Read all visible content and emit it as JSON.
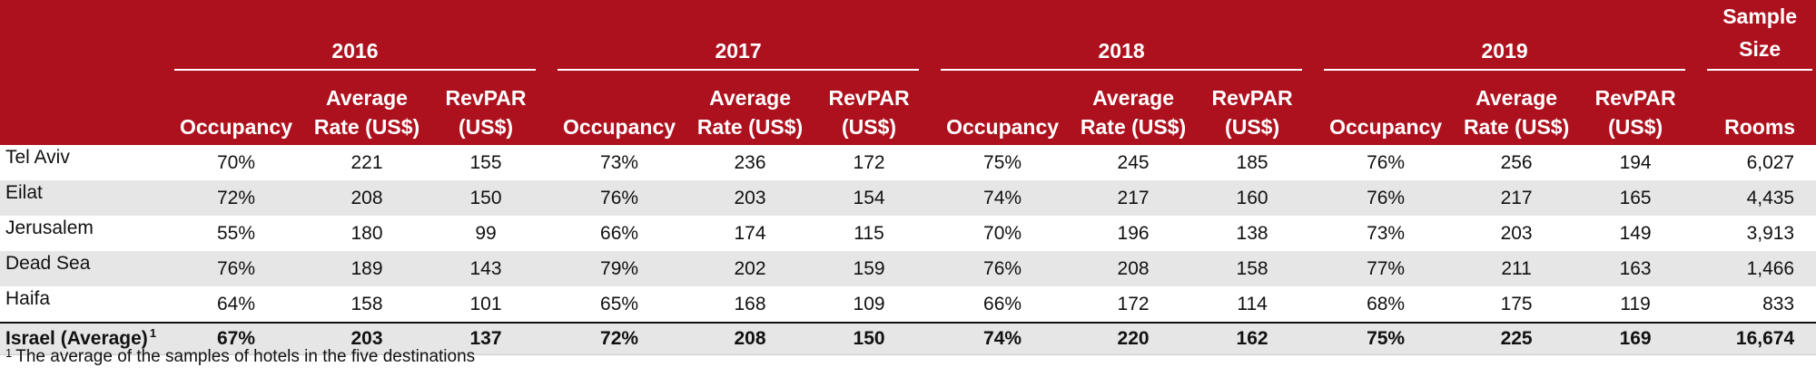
{
  "header": {
    "years": [
      "2016",
      "2017",
      "2018",
      "2019"
    ],
    "sample_top": "Sample",
    "sample_bottom": "Size",
    "sub": {
      "occupancy": "Occupancy",
      "rate_line1": "Average",
      "rate_line2": "Rate (US$)",
      "revpar_line1": "RevPAR",
      "revpar_line2": "(US$)",
      "rooms": "Rooms"
    }
  },
  "rows": [
    {
      "city": "Tel Aviv",
      "v": [
        "70%",
        "221",
        "155",
        "73%",
        "236",
        "172",
        "75%",
        "245",
        "185",
        "76%",
        "256",
        "194"
      ],
      "rooms": "6,027"
    },
    {
      "city": "Eilat",
      "v": [
        "72%",
        "208",
        "150",
        "76%",
        "203",
        "154",
        "74%",
        "217",
        "160",
        "76%",
        "217",
        "165"
      ],
      "rooms": "4,435"
    },
    {
      "city": "Jerusalem",
      "v": [
        "55%",
        "180",
        "99",
        "66%",
        "174",
        "115",
        "70%",
        "196",
        "138",
        "73%",
        "203",
        "149"
      ],
      "rooms": "3,913"
    },
    {
      "city": "Dead Sea",
      "v": [
        "76%",
        "189",
        "143",
        "79%",
        "202",
        "159",
        "76%",
        "208",
        "158",
        "77%",
        "211",
        "163"
      ],
      "rooms": "1,466"
    },
    {
      "city": "Haifa",
      "v": [
        "64%",
        "158",
        "101",
        "65%",
        "168",
        "109",
        "66%",
        "172",
        "114",
        "68%",
        "175",
        "119"
      ],
      "rooms": "833"
    }
  ],
  "total": {
    "city": "Israel (Average)",
    "marker": "1",
    "v": [
      "67%",
      "203",
      "137",
      "72%",
      "208",
      "150",
      "74%",
      "220",
      "162",
      "75%",
      "225",
      "169"
    ],
    "rooms": "16,674"
  },
  "footnote": {
    "marker": "1",
    "text": "The average of the samples of hotels in the five destinations"
  },
  "colors": {
    "header_bg": "#ae111e",
    "shade_bg": "#e6e6e6"
  }
}
